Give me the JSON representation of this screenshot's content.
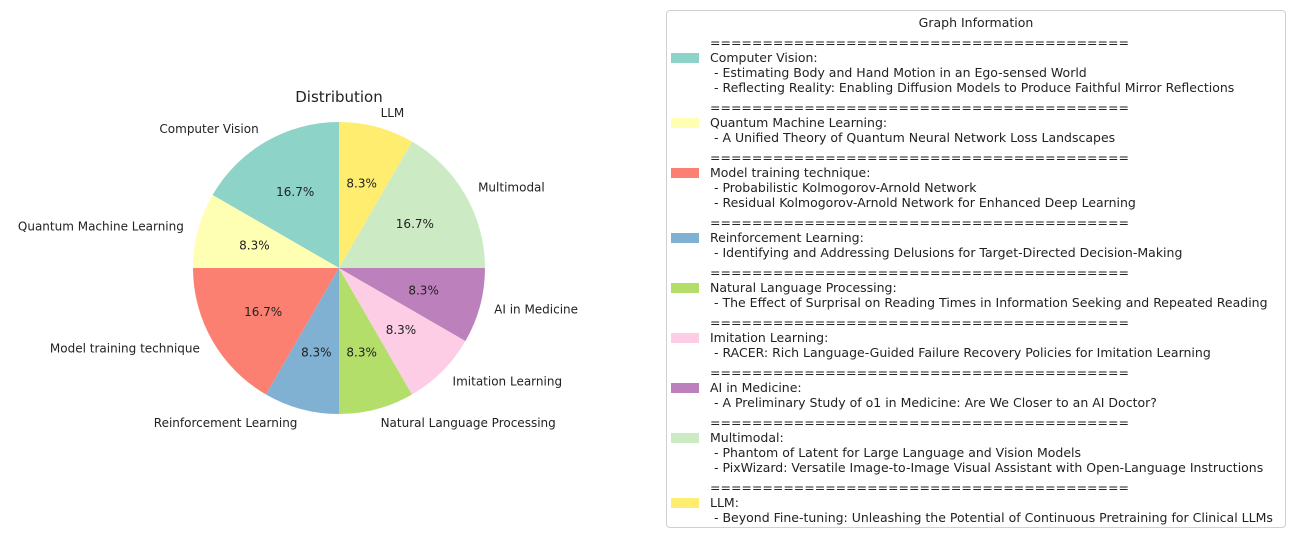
{
  "chart_data": {
    "type": "pie",
    "title": "Distribution",
    "categories": [
      "Computer Vision",
      "Quantum Machine Learning",
      "Model training technique",
      "Reinforcement Learning",
      "Natural Language Processing",
      "Imitation Learning",
      "AI in Medicine",
      "Multimodal",
      "LLM"
    ],
    "values": [
      2,
      1,
      2,
      1,
      1,
      1,
      1,
      2,
      1
    ],
    "percent_labels": [
      "16.7%",
      "8.3%",
      "16.7%",
      "8.3%",
      "8.3%",
      "8.3%",
      "8.3%",
      "16.7%",
      "8.3%"
    ],
    "colors": [
      "#8dd3c7",
      "#ffffb3",
      "#fb8072",
      "#80b1d3",
      "#b3de69",
      "#fccde5",
      "#bc80bd",
      "#ccebc5",
      "#ffed6f"
    ]
  },
  "legend": {
    "title": "Graph Information",
    "separator": "========================================",
    "entries": [
      {
        "label": "Computer Vision:",
        "color": "#8dd3c7",
        "items": [
          " - Estimating Body and Hand Motion in an Ego-sensed World",
          " - Reflecting Reality: Enabling Diffusion Models to Produce Faithful Mirror Reflections"
        ]
      },
      {
        "label": "Quantum Machine Learning:",
        "color": "#ffffb3",
        "items": [
          " - A Unified Theory of Quantum Neural Network Loss Landscapes"
        ]
      },
      {
        "label": "Model training technique:",
        "color": "#fb8072",
        "items": [
          " - Probabilistic Kolmogorov-Arnold Network",
          " - Residual Kolmogorov-Arnold Network for Enhanced Deep Learning"
        ]
      },
      {
        "label": "Reinforcement Learning:",
        "color": "#80b1d3",
        "items": [
          " - Identifying and Addressing Delusions for Target-Directed Decision-Making"
        ]
      },
      {
        "label": "Natural Language Processing:",
        "color": "#b3de69",
        "items": [
          " - The Effect of Surprisal on Reading Times in Information Seeking and Repeated Reading"
        ]
      },
      {
        "label": "Imitation Learning:",
        "color": "#fccde5",
        "items": [
          " - RACER: Rich Language-Guided Failure Recovery Policies for Imitation Learning"
        ]
      },
      {
        "label": "AI in Medicine:",
        "color": "#bc80bd",
        "items": [
          " - A Preliminary Study of o1 in Medicine: Are We Closer to an AI Doctor?"
        ]
      },
      {
        "label": "Multimodal:",
        "color": "#ccebc5",
        "items": [
          " - Phantom of Latent for Large Language and Vision Models",
          " - PixWizard: Versatile Image-to-Image Visual Assistant with Open-Language Instructions"
        ]
      },
      {
        "label": "LLM:",
        "color": "#ffed6f",
        "items": [
          " - Beyond Fine-tuning: Unleashing the Potential of Continuous Pretraining for Clinical LLMs"
        ]
      }
    ]
  }
}
